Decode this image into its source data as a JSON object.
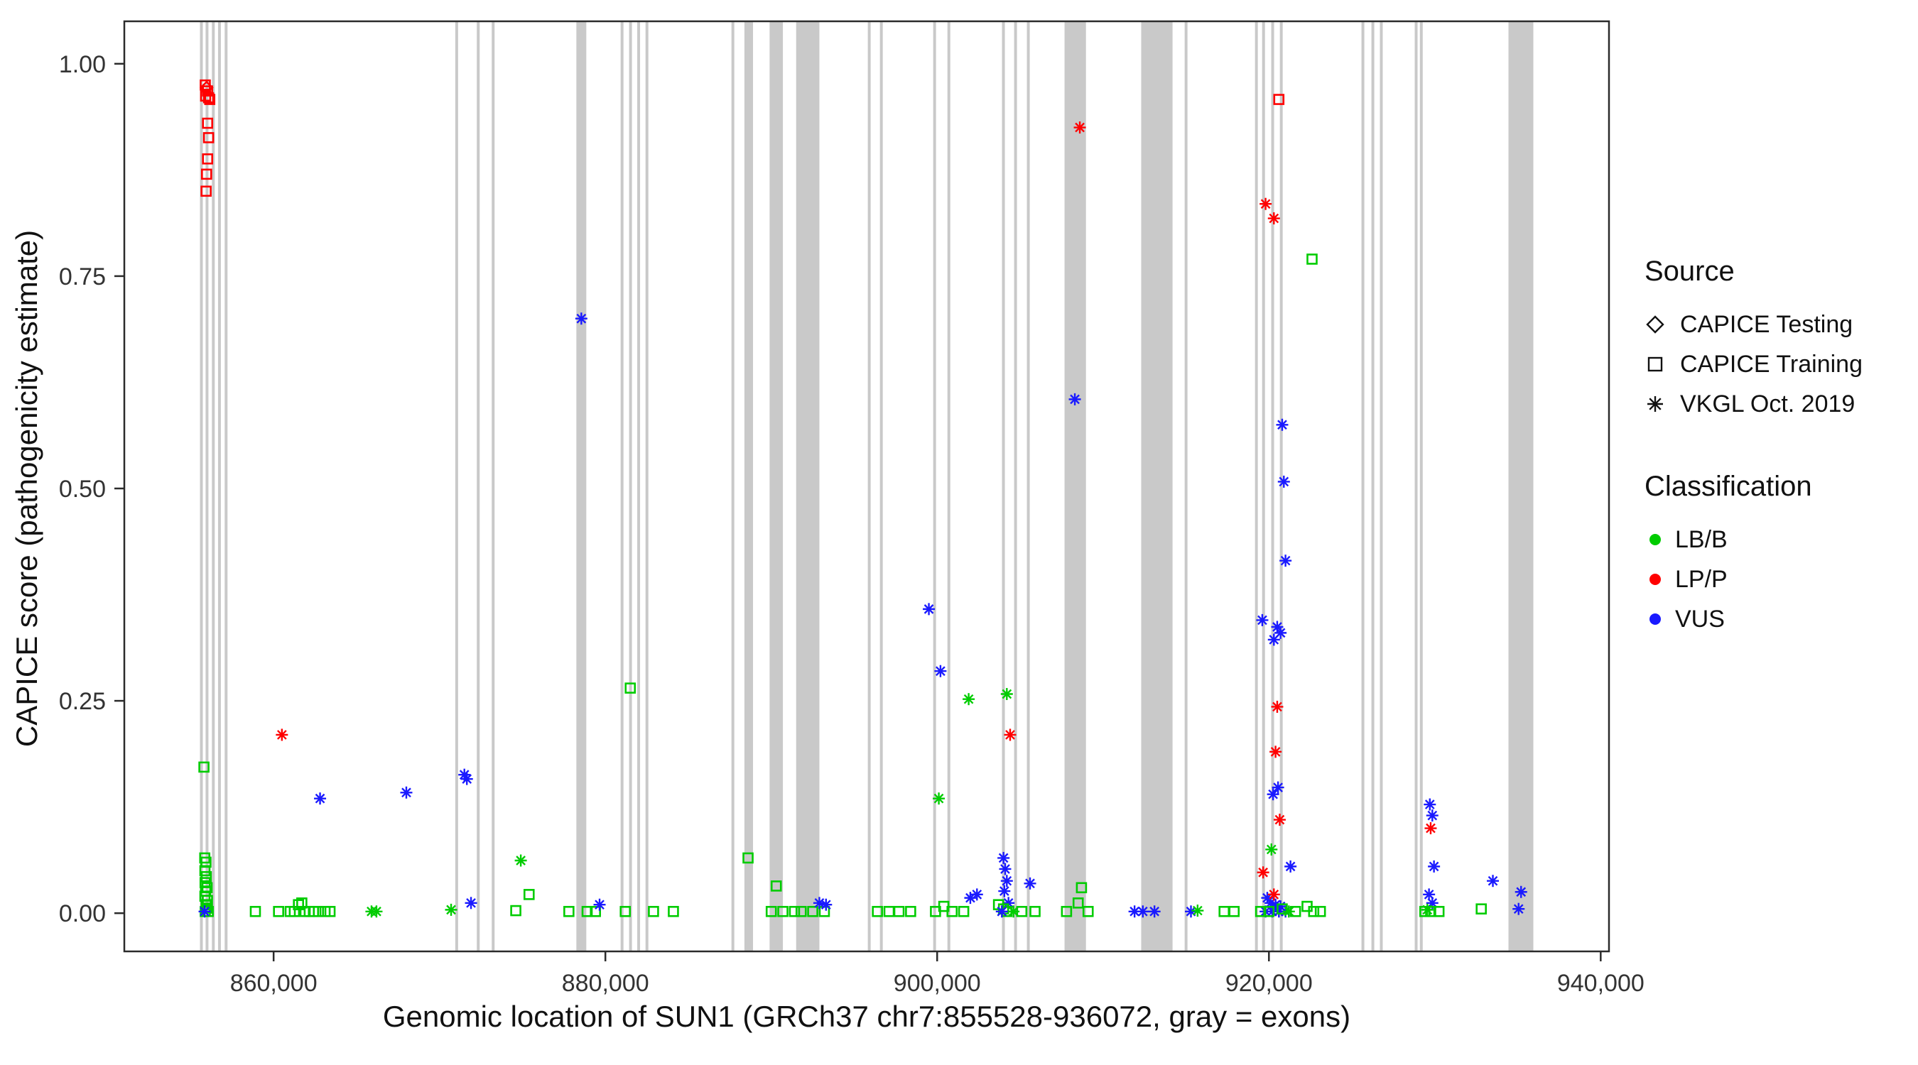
{
  "chart_data": {
    "type": "scatter",
    "title": "",
    "xlabel": "Genomic location of SUN1 (GRCh37 chr7:855528-936072, gray = exons)",
    "ylabel": "CAPICE score (pathogenicity estimate)",
    "xlim": [
      851000,
      940500
    ],
    "ylim": [
      -0.045,
      1.05
    ],
    "x_ticks": [
      860000,
      880000,
      900000,
      920000,
      940000
    ],
    "x_tick_labels": [
      "860,000",
      "880,000",
      "900,000",
      "920,000",
      "940,000"
    ],
    "y_ticks": [
      0,
      0.25,
      0.5,
      0.75,
      1.0
    ],
    "y_tick_labels": [
      "0.00",
      "0.25",
      "0.50",
      "0.75",
      "1.00"
    ],
    "grid": "off",
    "axis_color": "#2b2b2b",
    "exon_color": "#c9c9c9",
    "colors": {
      "LB/B": "#00cc00",
      "LP/P": "#ff0000",
      "VUS": "#1a1aff"
    },
    "shape_map": {
      "testing": "diamond",
      "training": "square",
      "vkgl": "asterisk"
    },
    "legend": {
      "source": {
        "title": "Source",
        "items": [
          {
            "label": "CAPICE Testing",
            "shape": "diamond"
          },
          {
            "label": "CAPICE Training",
            "shape": "square"
          },
          {
            "label": "VKGL Oct. 2019",
            "shape": "asterisk"
          }
        ]
      },
      "classification": {
        "title": "Classification",
        "items": [
          {
            "label": "LB/B",
            "color": "#00cc00"
          },
          {
            "label": "LP/P",
            "color": "#ff0000"
          },
          {
            "label": "VUS",
            "color": "#1a1aff"
          }
        ]
      }
    },
    "exons": [
      [
        855560,
        855660
      ],
      [
        855900,
        855990
      ],
      [
        856280,
        856370
      ],
      [
        856650,
        856740
      ],
      [
        857050,
        857140
      ],
      [
        870950,
        871050
      ],
      [
        872250,
        872350
      ],
      [
        873150,
        873280
      ],
      [
        878250,
        878850
      ],
      [
        880920,
        881010
      ],
      [
        881430,
        881520
      ],
      [
        881920,
        882010
      ],
      [
        882420,
        882510
      ],
      [
        887600,
        887700
      ],
      [
        888380,
        888900
      ],
      [
        889900,
        890700
      ],
      [
        891500,
        892900
      ],
      [
        895820,
        895910
      ],
      [
        896550,
        896640
      ],
      [
        899760,
        899850
      ],
      [
        900620,
        900710
      ],
      [
        903910,
        904000
      ],
      [
        904640,
        904730
      ],
      [
        905410,
        905500
      ],
      [
        907680,
        908970
      ],
      [
        912300,
        914190
      ],
      [
        914920,
        915010
      ],
      [
        919160,
        919250
      ],
      [
        919590,
        919680
      ],
      [
        920140,
        920230
      ],
      [
        920660,
        920750
      ],
      [
        925580,
        925670
      ],
      [
        926180,
        926270
      ],
      [
        926690,
        926780
      ],
      [
        928790,
        928900
      ],
      [
        929100,
        929220
      ],
      [
        934440,
        935940
      ]
    ],
    "point_format": [
      "x",
      "y",
      "classification",
      "source"
    ],
    "points": [
      [
        855880,
        0.975,
        "LP/P",
        "training"
      ],
      [
        855960,
        0.972,
        "LP/P",
        "testing"
      ],
      [
        856020,
        0.968,
        "LP/P",
        "training"
      ],
      [
        855900,
        0.962,
        "LP/P",
        "training"
      ],
      [
        856080,
        0.96,
        "LP/P",
        "training"
      ],
      [
        856150,
        0.958,
        "LP/P",
        "training"
      ],
      [
        856020,
        0.93,
        "LP/P",
        "training"
      ],
      [
        856080,
        0.913,
        "LP/P",
        "training"
      ],
      [
        856020,
        0.888,
        "LP/P",
        "training"
      ],
      [
        855960,
        0.87,
        "LP/P",
        "training"
      ],
      [
        855930,
        0.85,
        "LP/P",
        "training"
      ],
      [
        855800,
        0.172,
        "LB/B",
        "training"
      ],
      [
        855850,
        0.065,
        "LB/B",
        "training"
      ],
      [
        855920,
        0.06,
        "LB/B",
        "training"
      ],
      [
        855860,
        0.05,
        "LB/B",
        "training"
      ],
      [
        855940,
        0.043,
        "LB/B",
        "training"
      ],
      [
        855870,
        0.036,
        "LB/B",
        "training"
      ],
      [
        855990,
        0.03,
        "LB/B",
        "training"
      ],
      [
        855900,
        0.026,
        "LB/B",
        "training"
      ],
      [
        855860,
        0.02,
        "LB/B",
        "training"
      ],
      [
        856010,
        0.015,
        "LB/B",
        "training"
      ],
      [
        855930,
        0.01,
        "LB/B",
        "training"
      ],
      [
        855980,
        0.006,
        "LB/B",
        "training"
      ],
      [
        855880,
        0.002,
        "LB/B",
        "training"
      ],
      [
        856060,
        0.002,
        "LB/B",
        "training"
      ],
      [
        855840,
        0.002,
        "VUS",
        "vkgl"
      ],
      [
        858900,
        0.002,
        "LB/B",
        "training"
      ],
      [
        860300,
        0.002,
        "LB/B",
        "training"
      ],
      [
        861000,
        0.002,
        "LB/B",
        "training"
      ],
      [
        861250,
        0.002,
        "LB/B",
        "training"
      ],
      [
        861500,
        0.01,
        "LB/B",
        "training"
      ],
      [
        861700,
        0.012,
        "LB/B",
        "training"
      ],
      [
        861900,
        0.002,
        "LB/B",
        "training"
      ],
      [
        862150,
        0.002,
        "LB/B",
        "training"
      ],
      [
        862400,
        0.002,
        "LB/B",
        "training"
      ],
      [
        862700,
        0.002,
        "LB/B",
        "training"
      ],
      [
        863100,
        0.002,
        "LB/B",
        "training"
      ],
      [
        863400,
        0.002,
        "LB/B",
        "training"
      ],
      [
        865900,
        0.002,
        "LB/B",
        "vkgl"
      ],
      [
        866200,
        0.002,
        "LB/B",
        "vkgl"
      ],
      [
        860500,
        0.21,
        "LP/P",
        "vkgl"
      ],
      [
        862800,
        0.135,
        "VUS",
        "vkgl"
      ],
      [
        868000,
        0.142,
        "VUS",
        "vkgl"
      ],
      [
        870700,
        0.004,
        "LB/B",
        "vkgl"
      ],
      [
        871500,
        0.163,
        "VUS",
        "vkgl"
      ],
      [
        871650,
        0.158,
        "VUS",
        "vkgl"
      ],
      [
        871900,
        0.012,
        "VUS",
        "vkgl"
      ],
      [
        874900,
        0.062,
        "LB/B",
        "vkgl"
      ],
      [
        875400,
        0.022,
        "LB/B",
        "training"
      ],
      [
        874600,
        0.003,
        "LB/B",
        "training"
      ],
      [
        878550,
        0.7,
        "VUS",
        "vkgl"
      ],
      [
        877800,
        0.002,
        "LB/B",
        "training"
      ],
      [
        878900,
        0.002,
        "LB/B",
        "training"
      ],
      [
        879400,
        0.002,
        "LB/B",
        "training"
      ],
      [
        879650,
        0.01,
        "VUS",
        "vkgl"
      ],
      [
        881500,
        0.265,
        "LB/B",
        "training"
      ],
      [
        881200,
        0.002,
        "LB/B",
        "training"
      ],
      [
        882900,
        0.002,
        "LB/B",
        "training"
      ],
      [
        884100,
        0.002,
        "LB/B",
        "training"
      ],
      [
        888600,
        0.065,
        "LB/B",
        "training"
      ],
      [
        890300,
        0.032,
        "LB/B",
        "training"
      ],
      [
        890000,
        0.002,
        "LB/B",
        "training"
      ],
      [
        890700,
        0.002,
        "LB/B",
        "training"
      ],
      [
        891400,
        0.002,
        "LB/B",
        "training"
      ],
      [
        891800,
        0.002,
        "LB/B",
        "training"
      ],
      [
        892500,
        0.002,
        "LB/B",
        "training"
      ],
      [
        893200,
        0.002,
        "LB/B",
        "training"
      ],
      [
        892900,
        0.012,
        "VUS",
        "vkgl"
      ],
      [
        893300,
        0.01,
        "VUS",
        "vkgl"
      ],
      [
        896400,
        0.002,
        "LB/B",
        "training"
      ],
      [
        897100,
        0.002,
        "LB/B",
        "training"
      ],
      [
        897700,
        0.002,
        "LB/B",
        "training"
      ],
      [
        898400,
        0.002,
        "LB/B",
        "training"
      ],
      [
        899500,
        0.358,
        "VUS",
        "vkgl"
      ],
      [
        900200,
        0.285,
        "VUS",
        "vkgl"
      ],
      [
        900100,
        0.135,
        "LB/B",
        "vkgl"
      ],
      [
        900400,
        0.008,
        "LB/B",
        "training"
      ],
      [
        899900,
        0.002,
        "LB/B",
        "training"
      ],
      [
        900900,
        0.002,
        "LB/B",
        "training"
      ],
      [
        901600,
        0.002,
        "LB/B",
        "training"
      ],
      [
        901900,
        0.252,
        "LB/B",
        "vkgl"
      ],
      [
        904200,
        0.258,
        "LB/B",
        "vkgl"
      ],
      [
        904400,
        0.21,
        "LP/P",
        "vkgl"
      ],
      [
        902000,
        0.018,
        "VUS",
        "vkgl"
      ],
      [
        902400,
        0.022,
        "VUS",
        "vkgl"
      ],
      [
        904000,
        0.065,
        "VUS",
        "vkgl"
      ],
      [
        904100,
        0.052,
        "VUS",
        "vkgl"
      ],
      [
        904200,
        0.038,
        "VUS",
        "vkgl"
      ],
      [
        904050,
        0.026,
        "VUS",
        "vkgl"
      ],
      [
        904300,
        0.012,
        "VUS",
        "vkgl"
      ],
      [
        905600,
        0.035,
        "VUS",
        "vkgl"
      ],
      [
        903700,
        0.01,
        "LB/B",
        "training"
      ],
      [
        904000,
        0.005,
        "LB/B",
        "training"
      ],
      [
        904200,
        0.002,
        "LB/B",
        "training"
      ],
      [
        904600,
        0.002,
        "LB/B",
        "vkgl"
      ],
      [
        905100,
        0.002,
        "LB/B",
        "training"
      ],
      [
        905900,
        0.002,
        "LB/B",
        "training"
      ],
      [
        903900,
        0.002,
        "VUS",
        "vkgl"
      ],
      [
        908600,
        0.925,
        "LP/P",
        "vkgl"
      ],
      [
        908300,
        0.605,
        "VUS",
        "vkgl"
      ],
      [
        908700,
        0.03,
        "LB/B",
        "training"
      ],
      [
        908500,
        0.012,
        "LB/B",
        "training"
      ],
      [
        907800,
        0.002,
        "LB/B",
        "training"
      ],
      [
        909100,
        0.002,
        "LB/B",
        "training"
      ],
      [
        911900,
        0.002,
        "VUS",
        "vkgl"
      ],
      [
        912400,
        0.002,
        "VUS",
        "vkgl"
      ],
      [
        913100,
        0.002,
        "VUS",
        "vkgl"
      ],
      [
        915300,
        0.002,
        "VUS",
        "vkgl"
      ],
      [
        915700,
        0.003,
        "LB/B",
        "vkgl"
      ],
      [
        917300,
        0.002,
        "LB/B",
        "training"
      ],
      [
        917900,
        0.002,
        "LB/B",
        "training"
      ],
      [
        920600,
        0.958,
        "LP/P",
        "training"
      ],
      [
        919800,
        0.835,
        "LP/P",
        "vkgl"
      ],
      [
        920300,
        0.818,
        "LP/P",
        "vkgl"
      ],
      [
        922600,
        0.77,
        "LB/B",
        "training"
      ],
      [
        920800,
        0.575,
        "VUS",
        "vkgl"
      ],
      [
        920900,
        0.508,
        "VUS",
        "vkgl"
      ],
      [
        921000,
        0.415,
        "VUS",
        "vkgl"
      ],
      [
        919600,
        0.345,
        "VUS",
        "vkgl"
      ],
      [
        920500,
        0.337,
        "VUS",
        "vkgl"
      ],
      [
        920700,
        0.33,
        "VUS",
        "vkgl"
      ],
      [
        920300,
        0.322,
        "VUS",
        "vkgl"
      ],
      [
        920500,
        0.243,
        "LP/P",
        "vkgl"
      ],
      [
        920400,
        0.19,
        "LP/P",
        "vkgl"
      ],
      [
        920550,
        0.148,
        "VUS",
        "vkgl"
      ],
      [
        920250,
        0.14,
        "VUS",
        "vkgl"
      ],
      [
        920650,
        0.11,
        "LP/P",
        "vkgl"
      ],
      [
        920150,
        0.075,
        "LB/B",
        "vkgl"
      ],
      [
        919650,
        0.048,
        "LP/P",
        "vkgl"
      ],
      [
        921300,
        0.055,
        "VUS",
        "vkgl"
      ],
      [
        919900,
        0.018,
        "VUS",
        "vkgl"
      ],
      [
        920100,
        0.012,
        "VUS",
        "vkgl"
      ],
      [
        920400,
        0.01,
        "VUS",
        "vkgl"
      ],
      [
        920700,
        0.008,
        "VUS",
        "vkgl"
      ],
      [
        919800,
        0.002,
        "VUS",
        "vkgl"
      ],
      [
        920200,
        0.002,
        "VUS",
        "vkgl"
      ],
      [
        920600,
        0.002,
        "VUS",
        "vkgl"
      ],
      [
        921000,
        0.002,
        "VUS",
        "vkgl"
      ],
      [
        920300,
        0.022,
        "LP/P",
        "vkgl"
      ],
      [
        919500,
        0.002,
        "LB/B",
        "training"
      ],
      [
        920000,
        0.002,
        "LB/B",
        "training"
      ],
      [
        920800,
        0.005,
        "LB/B",
        "training"
      ],
      [
        921200,
        0.002,
        "LB/B",
        "vkgl"
      ],
      [
        921600,
        0.002,
        "LB/B",
        "training"
      ],
      [
        922300,
        0.008,
        "LB/B",
        "training"
      ],
      [
        922700,
        0.002,
        "LB/B",
        "training"
      ],
      [
        923100,
        0.002,
        "LB/B",
        "training"
      ],
      [
        929700,
        0.128,
        "VUS",
        "vkgl"
      ],
      [
        929850,
        0.115,
        "VUS",
        "vkgl"
      ],
      [
        929750,
        0.1,
        "LP/P",
        "vkgl"
      ],
      [
        929950,
        0.055,
        "VUS",
        "vkgl"
      ],
      [
        929650,
        0.022,
        "VUS",
        "vkgl"
      ],
      [
        929850,
        0.012,
        "VUS",
        "vkgl"
      ],
      [
        929400,
        0.002,
        "LB/B",
        "training"
      ],
      [
        929750,
        0.002,
        "LB/B",
        "training"
      ],
      [
        930250,
        0.002,
        "LB/B",
        "training"
      ],
      [
        929550,
        0.004,
        "LB/B",
        "vkgl"
      ],
      [
        933500,
        0.038,
        "VUS",
        "vkgl"
      ],
      [
        932800,
        0.005,
        "LB/B",
        "training"
      ],
      [
        935200,
        0.025,
        "VUS",
        "vkgl"
      ],
      [
        935050,
        0.005,
        "VUS",
        "vkgl"
      ]
    ]
  }
}
